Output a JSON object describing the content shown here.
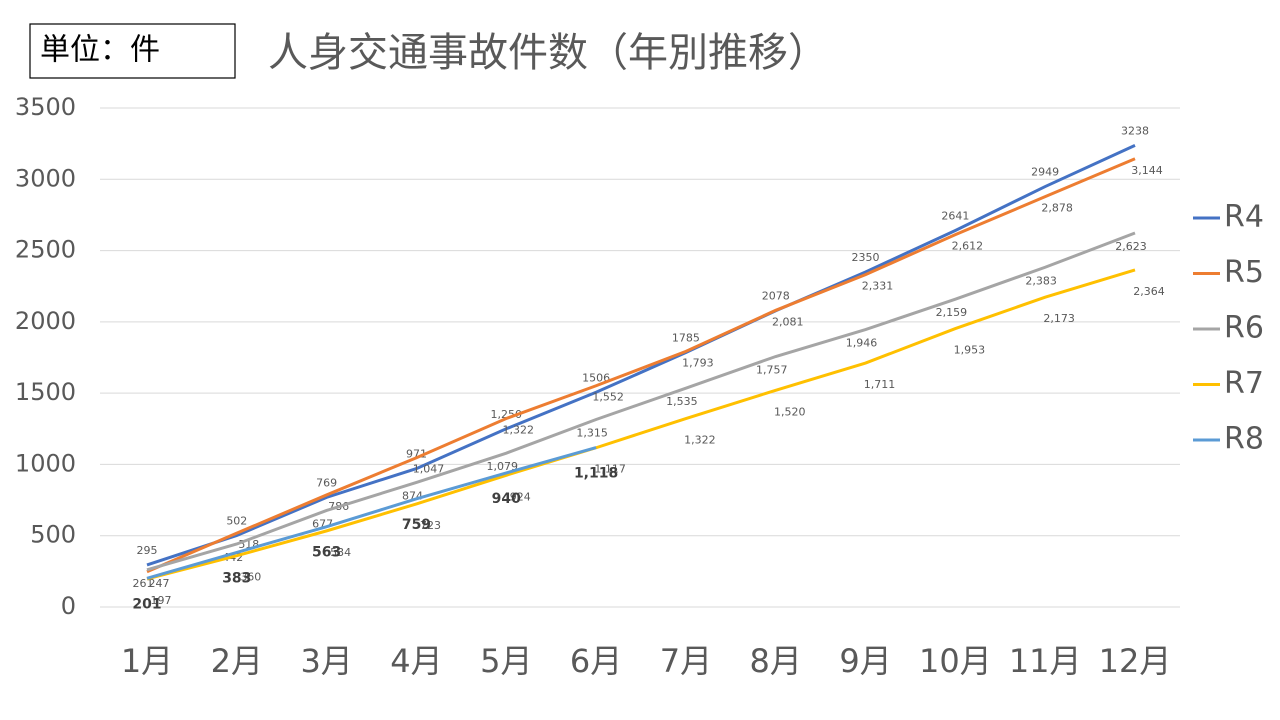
{
  "chart_data": {
    "type": "line",
    "title": "人身交通事故件数（年別推移）",
    "unit_label": "単位：件",
    "categories": [
      "1月",
      "2月",
      "3月",
      "4月",
      "5月",
      "6月",
      "7月",
      "8月",
      "9月",
      "10月",
      "11月",
      "12月"
    ],
    "series": [
      {
        "name": "R4",
        "color": "#4472c4",
        "values": [
          295,
          502,
          769,
          971,
          1250,
          1506,
          1785,
          2078,
          2350,
          2641,
          2949,
          3238
        ],
        "value_labels": [
          "295",
          "502",
          "769",
          "971",
          "1,250",
          "1506",
          "1785",
          "2078",
          "2350",
          "2641",
          "2949",
          "3238"
        ]
      },
      {
        "name": "R5",
        "color": "#ed7d31",
        "values": [
          247,
          518,
          786,
          1047,
          1322,
          1552,
          1793,
          2081,
          2331,
          2612,
          2878,
          3144
        ],
        "value_labels": [
          "247",
          "518",
          "786",
          "1,047",
          "1,322",
          "1,552",
          "1,793",
          "2,081",
          "2,331",
          "2,612",
          "2,878",
          "3,144"
        ]
      },
      {
        "name": "R6",
        "color": "#a5a5a5",
        "values": [
          261,
          442,
          677,
          874,
          1079,
          1315,
          1535,
          1757,
          1946,
          2159,
          2383,
          2623
        ],
        "value_labels": [
          "261",
          "442",
          "677",
          "874",
          "1,079",
          "1,315",
          "1,535",
          "1,757",
          "1,946",
          "2,159",
          "2,383",
          "2,623"
        ]
      },
      {
        "name": "R7",
        "color": "#ffc000",
        "values": [
          197,
          360,
          534,
          723,
          924,
          1117,
          1322,
          1520,
          1711,
          1953,
          2173,
          2364
        ],
        "value_labels": [
          "197",
          "360",
          "534",
          "723",
          "924",
          "1,117",
          "1,322",
          "1,520",
          "1,711",
          "1,953",
          "2,173",
          "2,364"
        ]
      },
      {
        "name": "R8",
        "color": "#5b9bd5",
        "values": [
          201,
          383,
          563,
          759,
          940,
          1118,
          null,
          null,
          null,
          null,
          null,
          null
        ],
        "value_labels": [
          "201",
          "383",
          "563",
          "759",
          "940",
          "1,118",
          null,
          null,
          null,
          null,
          null,
          null
        ]
      }
    ],
    "ylim": [
      0,
      3500
    ],
    "yticks": [
      0,
      500,
      1000,
      1500,
      2000,
      2500,
      3000,
      3500
    ],
    "grid": true,
    "legend": "right"
  }
}
